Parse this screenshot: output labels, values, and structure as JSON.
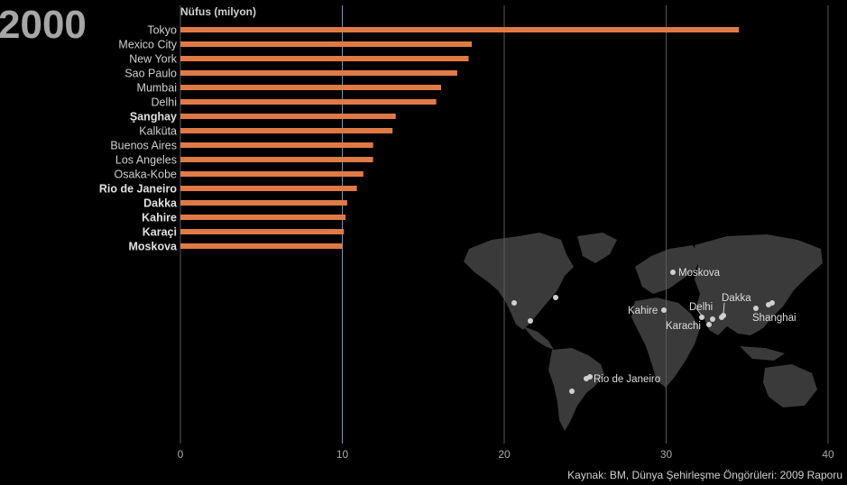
{
  "year": "2000",
  "source": "Kaynak: BM, Dünya Şehirleşme Öngörüleri: 2009 Raporu",
  "colors": {
    "background": "#000000",
    "bar": "#e07a45",
    "grid": "#5a5a5a",
    "reference_line": "#5aa0d0",
    "land": "#3a3a3a",
    "city_dot": "#cfcfcf"
  },
  "chart_data": {
    "type": "bar",
    "orientation": "horizontal",
    "ylabel": "Nüfus (milyon)",
    "xlabel": "",
    "xlim": [
      0,
      40
    ],
    "xticks": [
      0,
      10,
      20,
      30,
      40
    ],
    "grid": true,
    "reference_line": 10,
    "categories": [
      "Tokyo",
      "Mexico City",
      "New York",
      "Sao Paulo",
      "Mumbai",
      "Delhi",
      "Şanghay",
      "Kalküta",
      "Buenos Aires",
      "Los Angeles",
      "Osaka-Kobe",
      "Rio de Janeiro",
      "Dakka",
      "Kahire",
      "Karaçi",
      "Moskova"
    ],
    "bold_categories": [
      "Şanghay",
      "Rio de Janeiro",
      "Dakka",
      "Kahire",
      "Karaçi",
      "Moskova"
    ],
    "values": [
      34.5,
      18.0,
      17.8,
      17.1,
      16.1,
      15.8,
      13.3,
      13.1,
      11.9,
      11.9,
      11.3,
      10.9,
      10.3,
      10.2,
      10.1,
      10.0
    ]
  },
  "map": {
    "labels": [
      {
        "name": "moskova",
        "text": "Moskova"
      },
      {
        "name": "kahire",
        "text": "Kahire"
      },
      {
        "name": "delhi",
        "text": "Delhi"
      },
      {
        "name": "dakka",
        "text": "Dakka"
      },
      {
        "name": "karachi",
        "text": "Karachi"
      },
      {
        "name": "shanghai",
        "text": "Shanghai"
      },
      {
        "name": "rio",
        "text": "Rio de Janeiro"
      }
    ]
  }
}
